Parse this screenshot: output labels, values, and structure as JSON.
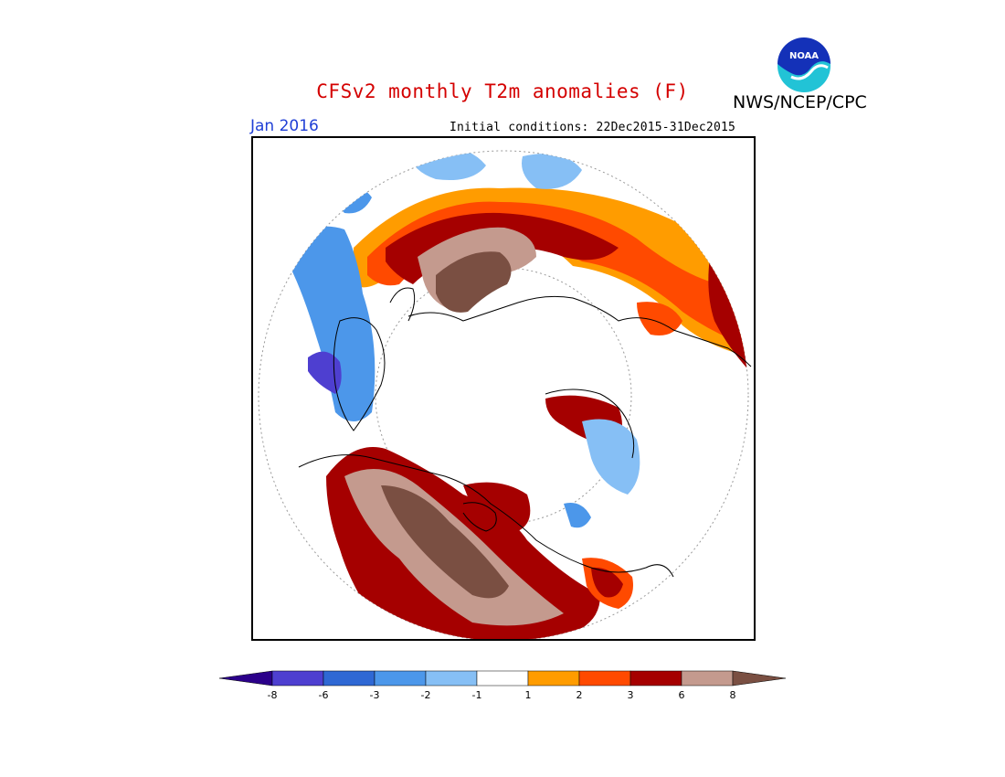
{
  "header": {
    "title": "CFSv2 monthly T2m anomalies (F)",
    "org": "NWS/NCEP/CPC",
    "month": "Jan 2016",
    "init_conditions": "Initial conditions: 22Dec2015-31Dec2015",
    "logo_text": "NOAA"
  },
  "colorbar": {
    "labels": [
      "-8",
      "-6",
      "-3",
      "-2",
      "-1",
      "1",
      "2",
      "3",
      "6",
      "8"
    ],
    "colors": [
      "#2b008a",
      "#4e3fd0",
      "#2f68d4",
      "#4c97ea",
      "#86bff5",
      "#ffffff",
      "#ff9c00",
      "#ff4a00",
      "#a50000",
      "#c49a8e",
      "#7a4f42"
    ]
  },
  "map": {
    "projection": "polar-stereographic",
    "region": "northern-hemisphere"
  }
}
